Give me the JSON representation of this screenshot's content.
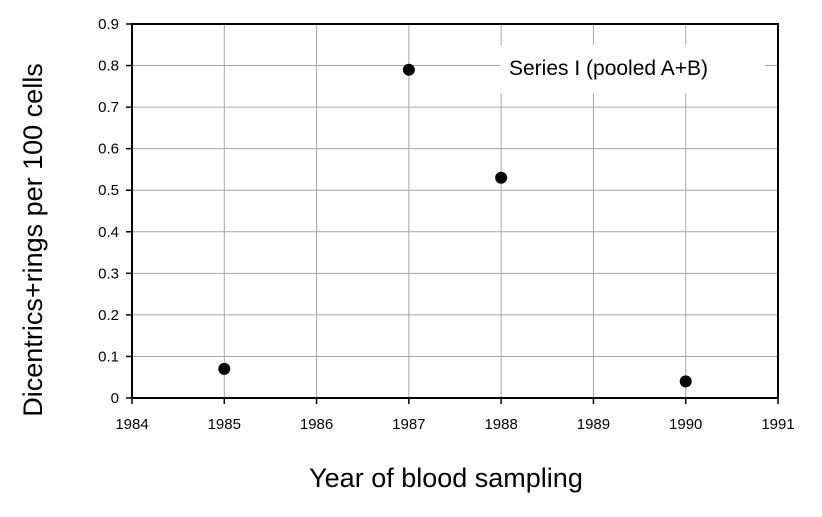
{
  "chart_data": {
    "type": "scatter",
    "xlabel": "Year of blood sampling",
    "ylabel": "Dicentrics+rings per 100 cells",
    "xlim": [
      1984,
      1991
    ],
    "ylim": [
      0,
      0.9
    ],
    "xticks": [
      1984,
      1985,
      1986,
      1987,
      1988,
      1989,
      1990,
      1991
    ],
    "yticks": [
      "0",
      "0.1",
      "0.2",
      "0.3",
      "0.4",
      "0.5",
      "0.6",
      "0.7",
      "0.8",
      "0.9"
    ],
    "grid": true,
    "annotation": "Series I (pooled A+B)",
    "series": [
      {
        "x": [
          1985,
          1987,
          1988,
          1990
        ],
        "y": [
          0.07,
          0.79,
          0.53,
          0.04
        ]
      }
    ],
    "colors": {
      "marker": "#000000",
      "grid": "#a6a6a6",
      "frame": "#000000"
    }
  }
}
